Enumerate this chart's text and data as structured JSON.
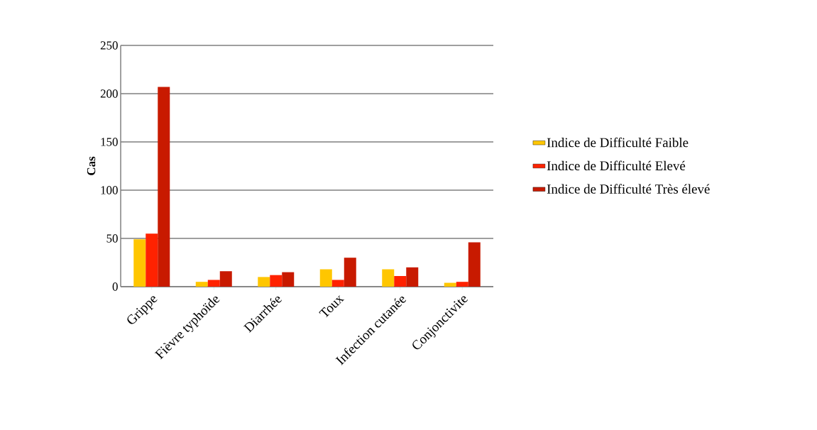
{
  "chart_data": {
    "type": "bar",
    "ylabel": "Cas",
    "categories": [
      "Grippe",
      "Fièvre typhoïde",
      "Diarrhée",
      "Toux",
      "Infection cutanée",
      "Conjonctivite"
    ],
    "series": [
      {
        "name": "Indice de Difficulté Faible",
        "color": "#ffc600",
        "values": [
          49,
          5,
          10,
          18,
          18,
          4
        ]
      },
      {
        "name": "Indice de Difficulté Elevé",
        "color": "#ff2200",
        "values": [
          55,
          7,
          12,
          7,
          11,
          5
        ]
      },
      {
        "name": "Indice de Difficulté Très élevé",
        "color": "#c81a00",
        "values": [
          207,
          16,
          15,
          30,
          20,
          46
        ]
      }
    ],
    "ylim": [
      0,
      250
    ],
    "yticks": [
      0,
      50,
      100,
      150,
      200,
      250
    ],
    "grid": "y",
    "legend": "right"
  }
}
